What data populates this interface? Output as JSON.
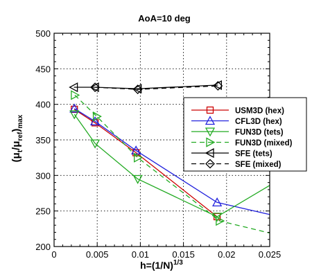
{
  "chart_data": {
    "type": "line",
    "title": "AoA=10 deg",
    "xlabel": "h=(1/N)^1/3",
    "xlabel_base": "h=(1/N)",
    "xlabel_sup": "1/3",
    "ylabel": "(μt/μref)max",
    "xlim": [
      0,
      0.025
    ],
    "ylim": [
      200,
      500
    ],
    "xticks": [
      0,
      0.005,
      0.01,
      0.015,
      0.02,
      0.025
    ],
    "xtick_labels": [
      "0",
      "0.005",
      "0.01",
      "0.015",
      "0.02",
      "0.025"
    ],
    "yticks": [
      200,
      250,
      300,
      350,
      400,
      450,
      500
    ],
    "ytick_labels": [
      "200",
      "250",
      "300",
      "350",
      "400",
      "450",
      "500"
    ],
    "grid": true,
    "legend_position": "right",
    "series": [
      {
        "name": "USM3D (hex)",
        "color": "#cc0000",
        "dash": "solid",
        "marker": "square",
        "x": [
          0.00235,
          0.00475,
          0.0095,
          0.0189
        ],
        "y": [
          393,
          374,
          332,
          242
        ]
      },
      {
        "name": "CFL3D (hex)",
        "color": "#2222dd",
        "dash": "solid",
        "marker": "triangle-up",
        "x": [
          0.00235,
          0.00475,
          0.0095,
          0.0189,
          0.025
        ],
        "y": [
          394,
          376,
          335,
          262,
          245
        ]
      },
      {
        "name": "FUN3D (tets)",
        "color": "#22aa22",
        "dash": "solid",
        "marker": "triangle-down",
        "x": [
          0.00235,
          0.00475,
          0.0097,
          0.0189,
          0.025
        ],
        "y": [
          386,
          345,
          295,
          242,
          286
        ]
      },
      {
        "name": "FUN3D (mixed)",
        "color": "#22aa22",
        "dash": "dashed",
        "marker": "triangle-right",
        "x": [
          0.0024,
          0.00495,
          0.0097,
          0.0192,
          0.025
        ],
        "y": [
          413,
          383,
          325,
          236,
          219
        ]
      },
      {
        "name": "SFE (tets)",
        "color": "#000000",
        "dash": "solid",
        "marker": "triangle-left",
        "x": [
          0.0023,
          0.00475,
          0.0097,
          0.019
        ],
        "y": [
          424,
          424,
          422,
          427
        ]
      },
      {
        "name": "SFE (mixed)",
        "color": "#000000",
        "dash": "dashed",
        "marker": "diamond",
        "x": [
          0.00475,
          0.0097,
          0.019
        ],
        "y": [
          424,
          421,
          426
        ]
      }
    ]
  }
}
